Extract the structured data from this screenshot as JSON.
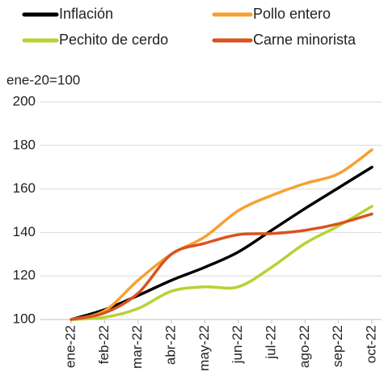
{
  "chart_data": {
    "type": "line",
    "y_label": "ene-20=100",
    "categories": [
      "ene-22",
      "feb-22",
      "mar-22",
      "abr-22",
      "may-22",
      "jun-22",
      "jul-22",
      "ago-22",
      "sep-22",
      "oct-22"
    ],
    "series": [
      {
        "name": "Inflación",
        "color": "#000000",
        "values": [
          100,
          104.5,
          111,
          118,
          124,
          131,
          141,
          151,
          160.5,
          170
        ]
      },
      {
        "name": "Pollo entero",
        "color": "#f7a030",
        "values": [
          100,
          104,
          118,
          130,
          138,
          150,
          157,
          162.5,
          167,
          178
        ]
      },
      {
        "name": "Pechito de cerdo",
        "color": "#b5d334",
        "values": [
          100,
          101,
          105,
          113,
          115,
          115,
          124,
          135,
          143,
          152
        ]
      },
      {
        "name": "Carne minorista",
        "color": "#d9531e",
        "values": [
          100,
          103,
          112,
          130,
          135,
          139,
          139.5,
          141,
          144,
          148.5
        ]
      }
    ],
    "ylim": [
      100,
      200
    ],
    "yticks": [
      100,
      120,
      140,
      160,
      180,
      200
    ],
    "grid": true
  }
}
